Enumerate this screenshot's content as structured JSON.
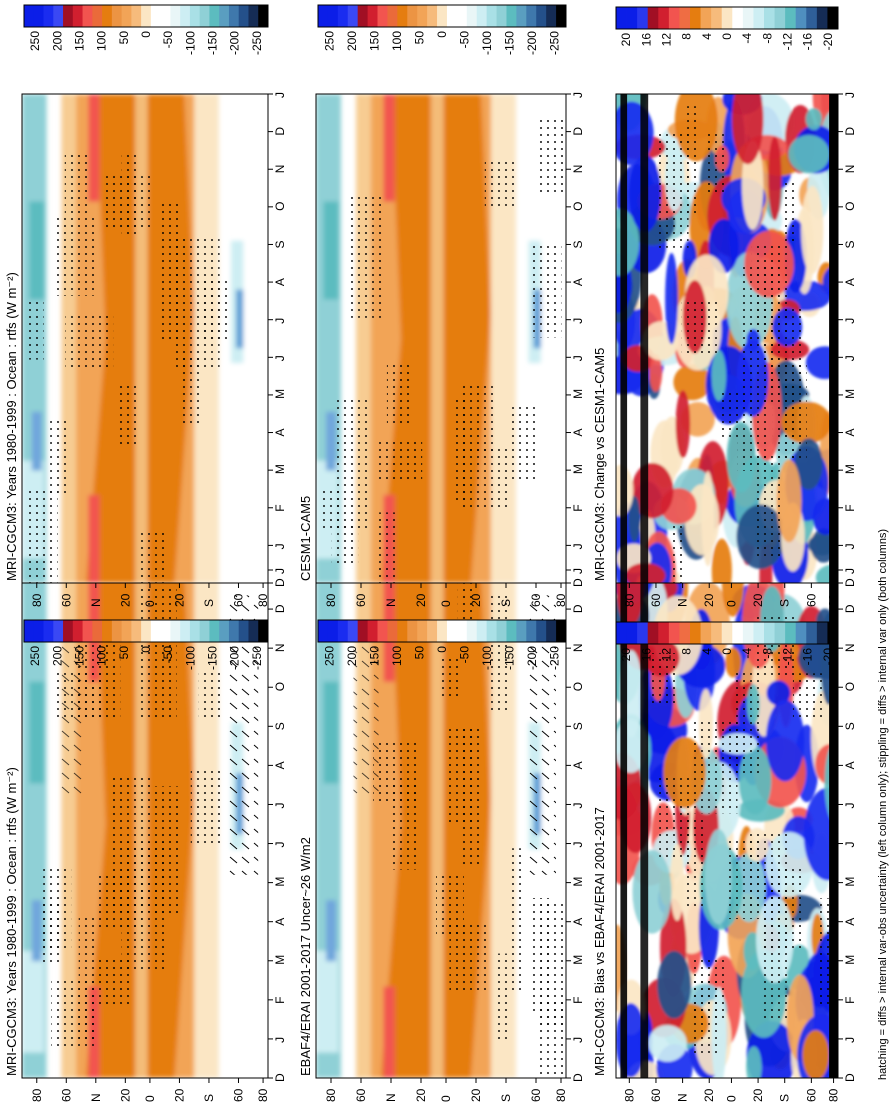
{
  "figure": {
    "footnote": "hatching = diffs > internal var-obs uncertainty (left column only); stippling = diffs > internal var only (both columns)"
  },
  "colors": {
    "ocean_dark": "#e57d10",
    "ocean_mid": "#f2a457",
    "ocean_light": "#f7cc92",
    "peach": "#fbe6c4",
    "red_hot": "#f2544f",
    "cyan_light": "#cdeef3",
    "cyan_mid": "#8fd0d6",
    "teal": "#5cbcbf",
    "blue_light": "#6fa6dc",
    "blue_mid": "#5a9ed6",
    "blue_deep": "#0b1ee8",
    "black": "#000000",
    "white": "#ffffff"
  },
  "chart_data": [
    {
      "id": "p1",
      "type": "heatmap",
      "title": "MRI-CGCM3: Years 1980-1999 : Ocean : rtfs (W m⁻²)",
      "x_ticks": [
        "D",
        "J",
        "F",
        "M",
        "A",
        "M",
        "J",
        "J",
        "A",
        "S",
        "O",
        "N",
        "D",
        "J"
      ],
      "y_ticks": [
        "80",
        "60",
        "N",
        "20",
        "0",
        "20",
        "S",
        "60",
        "80"
      ],
      "y_ticks_suffix": "°",
      "lat_range": [
        -90,
        90
      ],
      "colorbar": {
        "ticks": [
          "250",
          "200",
          "150",
          "100",
          "50",
          "0",
          "-50",
          "-100",
          "-150",
          "-200",
          "-250"
        ]
      },
      "hatching": true,
      "stippling": true
    },
    {
      "id": "p2",
      "type": "heatmap",
      "title": "MRI-CGCM3: Years 1980-1999 : Ocean : rtfs (W m⁻²)",
      "x_ticks": [
        "D",
        "J",
        "F",
        "M",
        "A",
        "M",
        "J",
        "J",
        "A",
        "S",
        "O",
        "N",
        "D",
        "J"
      ],
      "y_ticks": [
        "80",
        "60",
        "N",
        "20",
        "0",
        "20",
        "S",
        "60",
        "80"
      ],
      "lat_range": [
        -90,
        90
      ],
      "colorbar": {
        "ticks": [
          "250",
          "200",
          "150",
          "100",
          "50",
          "0",
          "-50",
          "-100",
          "-150",
          "-200",
          "-250"
        ]
      },
      "hatching": false,
      "stippling": true
    },
    {
      "id": "p3",
      "type": "heatmap",
      "title": "EBAF4/ERAI 2001-2017 Uncer~26 W/m2",
      "x_ticks": [
        "D",
        "J",
        "F",
        "M",
        "A",
        "M",
        "J",
        "J",
        "A",
        "S",
        "O",
        "N",
        "D",
        "J"
      ],
      "y_ticks": [
        "80",
        "60",
        "N",
        "20",
        "0",
        "20",
        "S",
        "60",
        "80"
      ],
      "lat_range": [
        -90,
        90
      ],
      "colorbar": {
        "ticks": [
          "250",
          "200",
          "150",
          "100",
          "50",
          "0",
          "-50",
          "-100",
          "-150",
          "-200",
          "-250"
        ]
      },
      "hatching": true,
      "stippling": true
    },
    {
      "id": "p4",
      "type": "heatmap",
      "title": "CESM1-CAM5",
      "x_ticks": [
        "D",
        "J",
        "F",
        "M",
        "A",
        "M",
        "J",
        "J",
        "A",
        "S",
        "O",
        "N",
        "D",
        "J"
      ],
      "y_ticks": [
        "80",
        "60",
        "N",
        "20",
        "0",
        "20",
        "S",
        "60",
        "80"
      ],
      "lat_range": [
        -90,
        90
      ],
      "colorbar": {
        "ticks": [
          "250",
          "200",
          "150",
          "100",
          "50",
          "0",
          "-50",
          "-100",
          "-150",
          "-200",
          "-250"
        ]
      },
      "hatching": false,
      "stippling": true
    },
    {
      "id": "p5",
      "type": "heatmap",
      "title": "MRI-CGCM3: Bias vs EBAF4/ERAI 2001-2017",
      "x_ticks": [
        "D",
        "J",
        "F",
        "M",
        "A",
        "M",
        "J",
        "J",
        "A",
        "S",
        "O",
        "N",
        "D",
        "J"
      ],
      "y_ticks": [
        "80",
        "60",
        "N",
        "20",
        "0",
        "20",
        "S",
        "60",
        "80"
      ],
      "lat_range": [
        -90,
        90
      ],
      "colorbar": {
        "ticks": [
          "20",
          "16",
          "12",
          "8",
          "4",
          "0",
          "-4",
          "-8",
          "-12",
          "-16",
          "-20"
        ]
      },
      "hatching": false,
      "stippling": true
    },
    {
      "id": "p6",
      "type": "heatmap",
      "title": "MRI-CGCM3: Change vs CESM1-CAM5",
      "x_ticks": [
        "D",
        "J",
        "F",
        "M",
        "A",
        "M",
        "J",
        "J",
        "A",
        "S",
        "O",
        "N",
        "D",
        "J"
      ],
      "y_ticks": [
        "80",
        "60",
        "N",
        "20",
        "0",
        "20",
        "S",
        "60",
        "80"
      ],
      "lat_range": [
        -90,
        90
      ],
      "colorbar": {
        "ticks": [
          "20",
          "16",
          "12",
          "8",
          "4",
          "0",
          "-4",
          "-8",
          "-12",
          "-16",
          "-20"
        ]
      },
      "hatching": false,
      "stippling": true
    }
  ]
}
